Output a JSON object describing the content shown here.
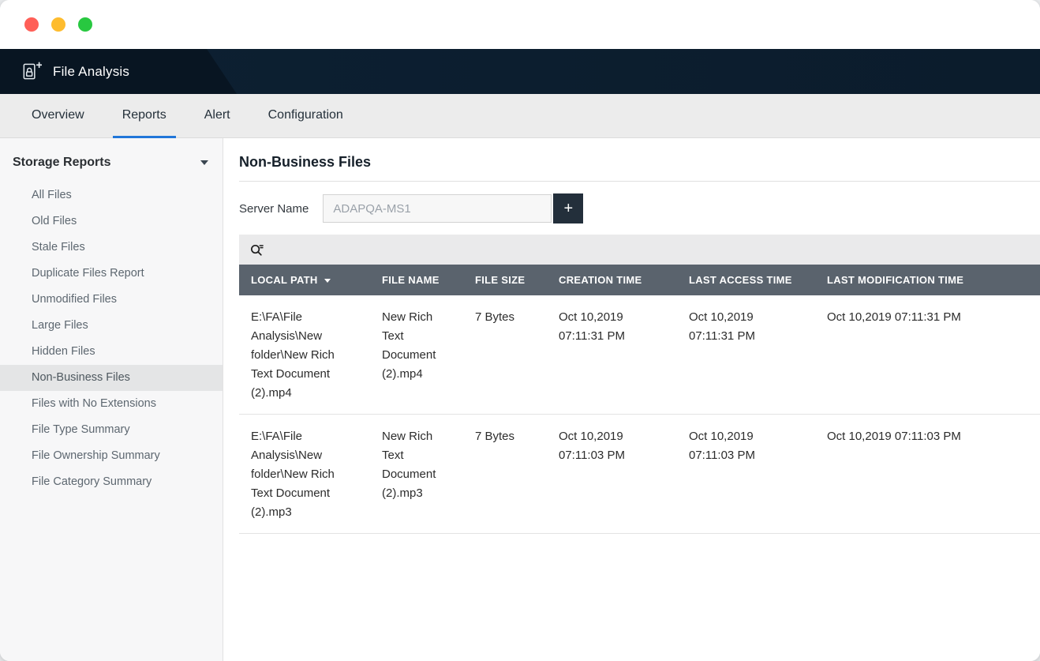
{
  "colors": {
    "accent": "#2176d9",
    "header-bg": "#0d2032",
    "header-bg-dark": "#081522",
    "table-header-bg": "#5a636d",
    "traffic-red": "#ff5f57",
    "traffic-yellow": "#febc2e",
    "traffic-green": "#28c840"
  },
  "app_header": {
    "title": "File Analysis"
  },
  "tabs": [
    {
      "label": "Overview",
      "active": false
    },
    {
      "label": "Reports",
      "active": true
    },
    {
      "label": "Alert",
      "active": false
    },
    {
      "label": "Configuration",
      "active": false
    }
  ],
  "sidebar": {
    "section": {
      "title": "Storage Reports"
    },
    "items": [
      {
        "label": "All Files",
        "selected": false
      },
      {
        "label": "Old Files",
        "selected": false
      },
      {
        "label": "Stale Files",
        "selected": false
      },
      {
        "label": "Duplicate Files Report",
        "selected": false
      },
      {
        "label": "Unmodified Files",
        "selected": false
      },
      {
        "label": "Large Files",
        "selected": false
      },
      {
        "label": "Hidden Files",
        "selected": false
      },
      {
        "label": "Non-Business Files",
        "selected": true
      },
      {
        "label": "Files with No Extensions",
        "selected": false
      },
      {
        "label": "File Type Summary",
        "selected": false
      },
      {
        "label": "File Ownership Summary",
        "selected": false
      },
      {
        "label": "File Category Summary",
        "selected": false
      }
    ]
  },
  "main": {
    "title": "Non-Business Files",
    "server": {
      "label": "Server Name",
      "value": "ADAPQA-MS1",
      "add_label": "+"
    },
    "table": {
      "columns": [
        {
          "label": "LOCAL PATH",
          "sortable": true
        },
        {
          "label": "FILE NAME",
          "sortable": false
        },
        {
          "label": "FILE SIZE",
          "sortable": false
        },
        {
          "label": "CREATION TIME",
          "sortable": false
        },
        {
          "label": "LAST ACCESS TIME",
          "sortable": false
        },
        {
          "label": "LAST MODIFICATION TIME",
          "sortable": false
        }
      ],
      "rows": [
        [
          "E:\\FA\\File Analysis\\New folder\\New Rich Text Document (2).mp4",
          "New Rich Text Document (2).mp4",
          "7 Bytes",
          "Oct 10,2019 07:11:31 PM",
          "Oct 10,2019 07:11:31 PM",
          "Oct 10,2019 07:11:31 PM"
        ],
        [
          "E:\\FA\\File Analysis\\New folder\\New Rich Text Document (2).mp3",
          "New Rich Text Document (2).mp3",
          "7 Bytes",
          "Oct 10,2019 07:11:03 PM",
          "Oct 10,2019 07:11:03 PM",
          "Oct 10,2019 07:11:03 PM"
        ]
      ]
    }
  }
}
